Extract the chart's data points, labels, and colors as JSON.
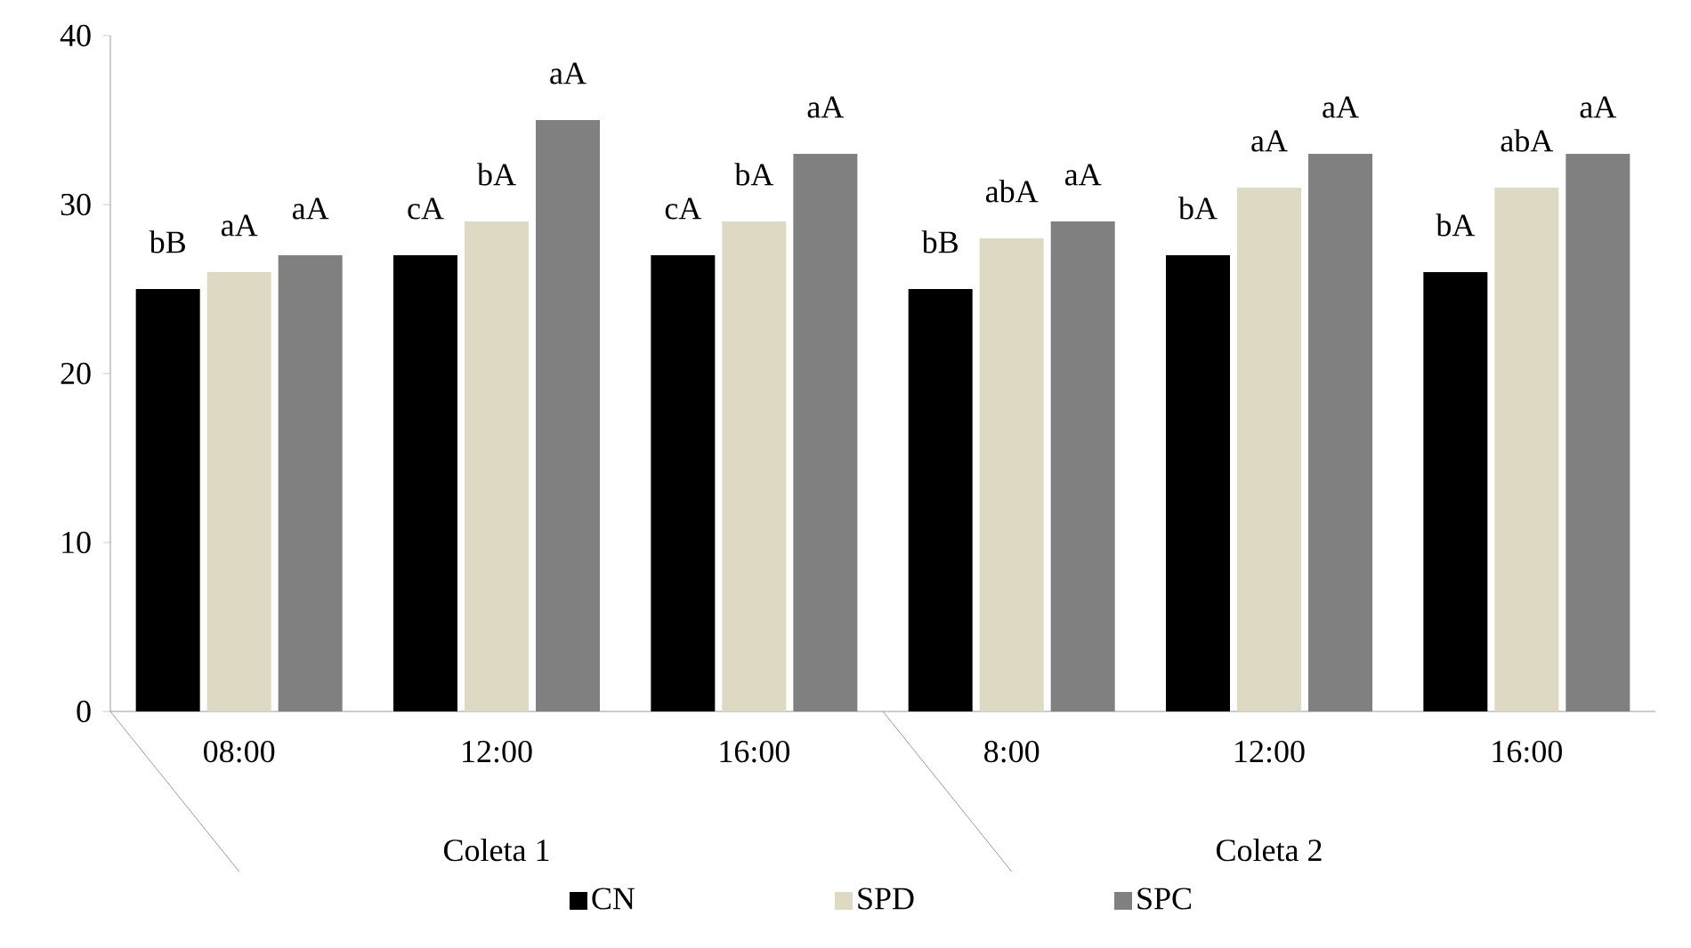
{
  "chart_data": {
    "type": "bar",
    "categories": [
      "08:00",
      "12:00",
      "16:00",
      "8:00",
      "12:00",
      "16:00"
    ],
    "series": [
      {
        "name": "CN",
        "color": "#000000",
        "values": [
          25,
          27,
          27,
          25,
          27,
          26
        ],
        "value_labels": [
          "bB",
          "cA",
          "cA",
          "bB",
          "bA",
          "bA"
        ]
      },
      {
        "name": "SPD",
        "color": "#ddd9c3",
        "values": [
          26,
          29,
          29,
          28,
          31,
          31
        ],
        "value_labels": [
          "aA",
          "bA",
          "bA",
          "abA",
          "aA",
          "abA"
        ]
      },
      {
        "name": "SPC",
        "color": "#808080",
        "values": [
          27,
          35,
          33,
          29,
          33,
          33
        ],
        "value_labels": [
          "aA",
          "aA",
          "aA",
          "aA",
          "aA",
          "aA"
        ]
      }
    ],
    "annotations": [
      "Coleta 1",
      "Coleta 2"
    ],
    "ylim": [
      0,
      40
    ],
    "yticks": [
      0,
      10,
      20,
      30,
      40
    ],
    "legend": "bottom"
  }
}
